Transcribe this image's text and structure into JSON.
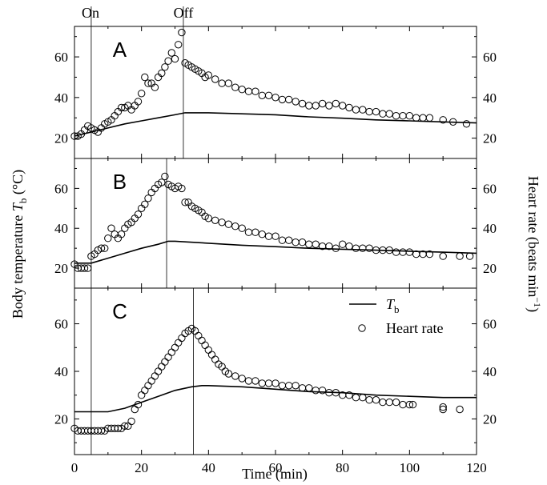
{
  "figure": {
    "on_label": "On",
    "off_label": "Off",
    "y_left_label_main": "Body temperature ",
    "y_left_label_var": "T",
    "y_left_label_sub": "b",
    "y_left_label_unit": " (°C)",
    "y_right_label_main": "Heart rate (beats min",
    "y_right_label_sup": "−1",
    "y_right_label_close": ")",
    "x_label": "Time (min)",
    "legend": {
      "tb_var": "T",
      "tb_sub": "b",
      "hr_label": "Heart rate"
    }
  },
  "chart_data": [
    {
      "type": "scatter",
      "panel": "A",
      "xlim": [
        0,
        120
      ],
      "ylim_left": [
        10,
        75
      ],
      "ylim_right": [
        10,
        75
      ],
      "xticks": [
        0,
        20,
        40,
        60,
        80,
        100,
        120
      ],
      "yticks": [
        20,
        40,
        60
      ],
      "heater_on_min": 5,
      "heater_off_min": 32.5,
      "series": [
        {
          "name": "T",
          "style": "line",
          "x": [
            0,
            5,
            10,
            15,
            20,
            25,
            30,
            33,
            40,
            50,
            60,
            70,
            80,
            90,
            100,
            110,
            120
          ],
          "values": [
            21,
            23,
            25,
            27,
            28.5,
            30,
            31.5,
            32.5,
            32.5,
            32,
            31.5,
            30.5,
            29.8,
            29,
            28.5,
            28,
            27.5
          ]
        },
        {
          "name": "Heart rate",
          "style": "circles",
          "x": [
            0,
            1,
            2,
            3,
            4,
            5,
            6,
            7,
            8,
            9,
            10,
            11,
            12,
            13,
            14,
            15,
            16,
            17,
            18,
            19,
            20,
            21,
            22,
            23,
            24,
            25,
            26,
            27,
            28,
            29,
            30,
            31,
            32,
            33,
            34,
            35,
            36,
            37,
            38,
            39,
            40,
            42,
            44,
            46,
            48,
            50,
            52,
            54,
            56,
            58,
            60,
            62,
            64,
            66,
            68,
            70,
            72,
            74,
            76,
            78,
            80,
            82,
            84,
            86,
            88,
            90,
            92,
            94,
            96,
            98,
            100,
            102,
            104,
            106,
            110,
            113,
            117
          ],
          "values": [
            21,
            21,
            22,
            24,
            26,
            25,
            24,
            23,
            25,
            27,
            28,
            29,
            31,
            33,
            35,
            35,
            36,
            34,
            36,
            38,
            42,
            50,
            47,
            47,
            45,
            50,
            52,
            55,
            58,
            62,
            59,
            66,
            72,
            57,
            56,
            55,
            54,
            53,
            52,
            50,
            51,
            49,
            47,
            47,
            45,
            44,
            43,
            43,
            41,
            41,
            40,
            39,
            39,
            38,
            37,
            36,
            36,
            37,
            36,
            37,
            36,
            35,
            34,
            34,
            33,
            33,
            32,
            32,
            31,
            31,
            31,
            30,
            30,
            30,
            29,
            28,
            27
          ]
        }
      ]
    },
    {
      "type": "scatter",
      "panel": "B",
      "xlim": [
        0,
        120
      ],
      "ylim_left": [
        10,
        75
      ],
      "ylim_right": [
        10,
        75
      ],
      "xticks": [
        0,
        20,
        40,
        60,
        80,
        100,
        120
      ],
      "yticks": [
        20,
        40,
        60
      ],
      "heater_on_min": 5,
      "heater_off_min": 27.5,
      "series": [
        {
          "name": "T",
          "style": "line",
          "x": [
            0,
            5,
            10,
            15,
            20,
            25,
            28,
            30,
            40,
            50,
            60,
            70,
            80,
            90,
            100,
            110,
            120
          ],
          "values": [
            22.5,
            22.5,
            25,
            27.5,
            30,
            32,
            33.5,
            33.5,
            32.5,
            31.5,
            30.8,
            30,
            29.5,
            29,
            28.5,
            28,
            27.5
          ]
        },
        {
          "name": "Heart rate",
          "style": "circles",
          "x": [
            0,
            1,
            2,
            3,
            4,
            5,
            6,
            7,
            8,
            9,
            10,
            11,
            12,
            13,
            14,
            15,
            16,
            17,
            18,
            19,
            20,
            21,
            22,
            23,
            24,
            25,
            26,
            27,
            28,
            29,
            30,
            31,
            32,
            33,
            34,
            35,
            36,
            37,
            38,
            39,
            40,
            42,
            44,
            46,
            48,
            50,
            52,
            54,
            56,
            58,
            60,
            62,
            64,
            66,
            68,
            70,
            72,
            74,
            76,
            78,
            80,
            82,
            84,
            86,
            88,
            90,
            92,
            94,
            96,
            98,
            100,
            102,
            104,
            106,
            110,
            115,
            118
          ],
          "values": [
            22,
            20,
            20,
            20,
            20,
            26,
            27,
            29,
            30,
            30,
            35,
            40,
            37,
            35,
            37,
            40,
            42,
            43,
            45,
            47,
            50,
            52,
            55,
            58,
            60,
            62,
            63,
            66,
            62,
            61,
            60,
            61,
            60,
            53,
            53,
            51,
            50,
            49,
            48,
            46,
            45,
            44,
            43,
            42,
            41,
            40,
            38,
            38,
            37,
            36,
            36,
            34,
            34,
            33,
            33,
            32,
            32,
            31,
            31,
            30,
            32,
            31,
            30,
            30,
            30,
            29,
            29,
            29,
            28,
            28,
            28,
            27,
            27,
            27,
            26,
            26,
            26
          ]
        }
      ]
    },
    {
      "type": "scatter",
      "panel": "C",
      "xlim": [
        0,
        120
      ],
      "ylim_left": [
        5,
        75
      ],
      "ylim_right": [
        5,
        75
      ],
      "xticks": [
        0,
        20,
        40,
        60,
        80,
        100,
        120
      ],
      "yticks": [
        20,
        40,
        60
      ],
      "heater_on_min": 5,
      "heater_off_min": 35.5,
      "series": [
        {
          "name": "T",
          "style": "line",
          "x": [
            0,
            5,
            10,
            15,
            20,
            25,
            30,
            35,
            38,
            40,
            50,
            60,
            70,
            80,
            90,
            100,
            110,
            115,
            120
          ],
          "values": [
            23,
            23,
            23,
            24.5,
            27,
            29.5,
            32,
            33.5,
            34,
            34,
            33.5,
            32.5,
            31.5,
            31,
            30,
            29.5,
            29,
            29,
            29
          ]
        },
        {
          "name": "Heart rate",
          "style": "circles",
          "x": [
            0,
            1,
            2,
            3,
            4,
            5,
            6,
            7,
            8,
            9,
            10,
            11,
            12,
            13,
            14,
            15,
            16,
            17,
            18,
            19,
            20,
            21,
            22,
            23,
            24,
            25,
            26,
            27,
            28,
            29,
            30,
            31,
            32,
            33,
            34,
            35,
            36,
            37,
            38,
            39,
            40,
            41,
            42,
            43,
            44,
            45,
            46,
            48,
            50,
            52,
            54,
            56,
            58,
            60,
            62,
            64,
            66,
            68,
            70,
            72,
            74,
            76,
            78,
            80,
            82,
            84,
            86,
            88,
            90,
            92,
            94,
            96,
            98,
            100,
            101,
            110,
            110,
            115
          ],
          "values": [
            16,
            15,
            15,
            15,
            15,
            15,
            15,
            15,
            15,
            15,
            16,
            16,
            16,
            16,
            16,
            17,
            17,
            19,
            24,
            26,
            30,
            32,
            34,
            36,
            38,
            40,
            42,
            44,
            46,
            48,
            50,
            52,
            54,
            56,
            57,
            58,
            57,
            55,
            53,
            51,
            49,
            47,
            45,
            43,
            42,
            40,
            39,
            38,
            37,
            36,
            36,
            35,
            35,
            35,
            34,
            34,
            34,
            33,
            33,
            32,
            32,
            31,
            31,
            30,
            30,
            29,
            29,
            28,
            28,
            27,
            27,
            27,
            26,
            26,
            26,
            25,
            24,
            24
          ]
        }
      ]
    }
  ]
}
